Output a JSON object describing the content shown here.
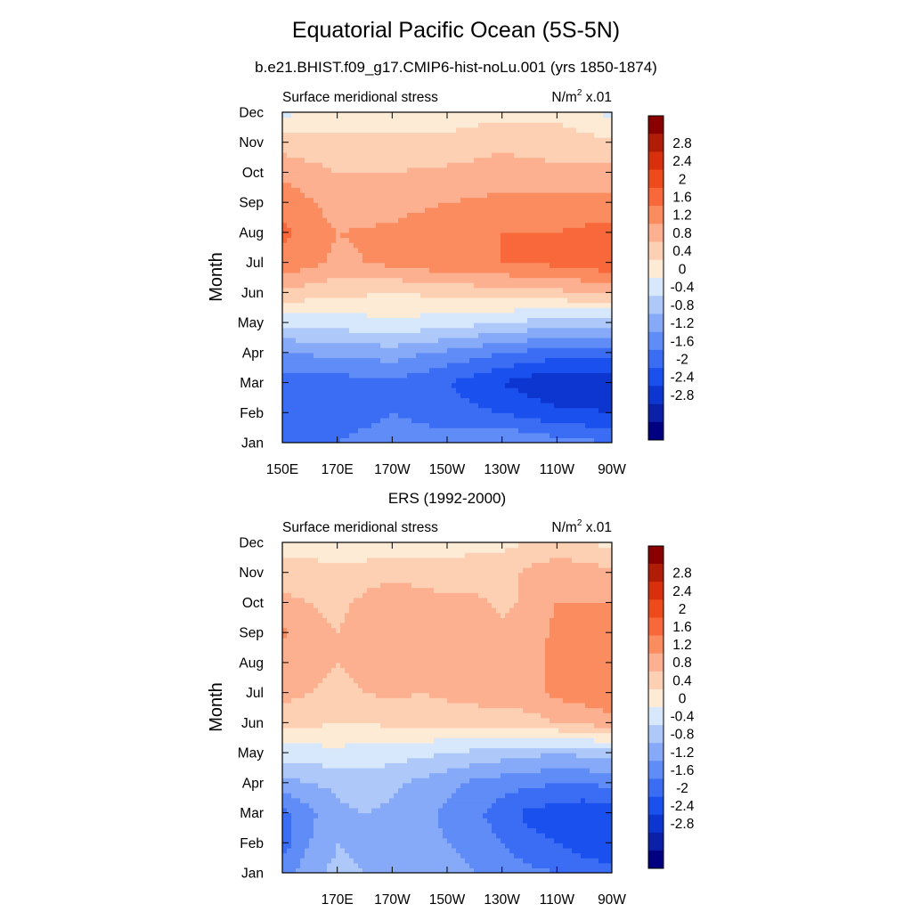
{
  "title": "Equatorial Pacific Ocean (5S-5N)",
  "subtitle": "b.e21.BHIST.f09_g17.CMIP6-hist-noLu.001 (yrs 1850-1874)",
  "colors": [
    "#000080",
    "#0a20a8",
    "#0d36d0",
    "#1a50ee",
    "#3a6cf4",
    "#5f8cf6",
    "#86aaf8",
    "#afc8fa",
    "#d8e8fc",
    "#fdebd6",
    "#fdd0b4",
    "#fcb090",
    "#fb8c60",
    "#f8683a",
    "#ef4a1c",
    "#d8300d",
    "#b01c05",
    "#8a0000"
  ],
  "chart_data": [
    {
      "type": "heatmap",
      "title": "",
      "left_label": "Surface meridional stress",
      "units_label": "N/m",
      "units_superscript": "2",
      "units_scale": "x.01",
      "xlabel": "",
      "ylabel": "Month",
      "x_tick_labels": [
        "150E",
        "170E",
        "170W",
        "150W",
        "130W",
        "110W",
        "90W"
      ],
      "y_tick_labels": [
        "Jan",
        "Feb",
        "Mar",
        "Apr",
        "May",
        "Jun",
        "Jul",
        "Aug",
        "Sep",
        "Oct",
        "Nov",
        "Dec"
      ],
      "colorbar_levels": [
        "2.8",
        "2.4",
        "2",
        "1.6",
        "1.2",
        "0.8",
        "0.4",
        "0",
        "-0.4",
        "-0.8",
        "-1.2",
        "-1.6",
        "-2",
        "-2.4",
        "-2.8"
      ],
      "x_lon": [
        150,
        170,
        190,
        210,
        230,
        250,
        270
      ],
      "y_months": [
        "Jan",
        "Feb",
        "Mar",
        "Apr",
        "May",
        "Jun",
        "Jul",
        "Aug",
        "Sep",
        "Oct",
        "Nov",
        "Dec"
      ],
      "values": [
        [
          -1.6,
          -1.6,
          -1.4,
          -1.4,
          -1.2,
          -1.4,
          -1.6
        ],
        [
          -1.8,
          -1.8,
          -1.6,
          -1.8,
          -2.0,
          -2.3,
          -2.4
        ],
        [
          -1.8,
          -1.8,
          -1.7,
          -2.0,
          -2.4,
          -2.8,
          -2.6
        ],
        [
          -1.2,
          -1.1,
          -1.0,
          -1.3,
          -1.6,
          -1.8,
          -1.8
        ],
        [
          -0.3,
          -0.2,
          -0.1,
          -0.2,
          -0.4,
          -0.6,
          -0.7
        ],
        [
          0.7,
          0.5,
          0.4,
          0.5,
          0.6,
          0.7,
          0.9
        ],
        [
          1.5,
          1.1,
          1.3,
          1.5,
          1.6,
          1.7,
          1.9
        ],
        [
          1.7,
          1.2,
          1.3,
          1.6,
          1.6,
          1.6,
          1.8
        ],
        [
          1.5,
          1.0,
          1.0,
          1.2,
          1.3,
          1.3,
          1.3
        ],
        [
          1.1,
          0.8,
          0.8,
          0.9,
          1.0,
          0.9,
          0.9
        ],
        [
          0.6,
          0.5,
          0.5,
          0.5,
          0.7,
          0.6,
          0.5
        ],
        [
          -0.1,
          0.2,
          0.1,
          0.2,
          0.3,
          0.3,
          -0.1
        ]
      ]
    },
    {
      "type": "heatmap",
      "title": "ERS (1992-2000)",
      "left_label": "Surface meridional stress",
      "units_label": "N/m",
      "units_superscript": "2",
      "units_scale": "x.01",
      "xlabel": "",
      "ylabel": "Month",
      "x_tick_labels": [
        "170E",
        "170W",
        "150W",
        "130W",
        "110W",
        "90W"
      ],
      "y_tick_labels": [
        "Jan",
        "Feb",
        "Mar",
        "Apr",
        "May",
        "Jun",
        "Jul",
        "Aug",
        "Sep",
        "Oct",
        "Nov",
        "Dec"
      ],
      "colorbar_levels": [
        "2.8",
        "2.4",
        "2",
        "1.6",
        "1.2",
        "0.8",
        "0.4",
        "0",
        "-0.4",
        "-0.8",
        "-1.2",
        "-1.6",
        "-2",
        "-2.4",
        "-2.8"
      ],
      "x_lon": [
        150,
        160,
        170,
        180,
        190,
        200,
        210,
        220,
        230,
        240,
        250,
        260,
        270
      ],
      "y_months": [
        "Jan",
        "Feb",
        "Mar",
        "Apr",
        "May",
        "Jun",
        "Jul",
        "Aug",
        "Sep",
        "Oct",
        "Nov",
        "Dec"
      ],
      "values": [
        [
          -1.4,
          -0.9,
          -0.7,
          -0.8,
          -0.9,
          -1.0,
          -1.0,
          -1.2,
          -1.3,
          -1.5,
          -1.6,
          -1.8,
          -1.9
        ],
        [
          -1.8,
          -1.2,
          -0.8,
          -0.9,
          -1.0,
          -1.1,
          -1.2,
          -1.4,
          -1.6,
          -1.9,
          -2.0,
          -2.2,
          -2.2
        ],
        [
          -1.7,
          -1.3,
          -0.9,
          -0.8,
          -0.9,
          -1.0,
          -1.3,
          -1.5,
          -1.8,
          -2.1,
          -2.2,
          -2.3,
          -2.2
        ],
        [
          -1.0,
          -0.8,
          -0.7,
          -0.6,
          -0.7,
          -0.9,
          -1.1,
          -1.3,
          -1.4,
          -1.5,
          -1.6,
          -1.6,
          -1.5
        ],
        [
          -0.2,
          -0.2,
          -0.1,
          -0.2,
          -0.2,
          -0.3,
          -0.4,
          -0.5,
          -0.6,
          -0.7,
          -0.8,
          -0.7,
          -0.6
        ],
        [
          0.6,
          0.5,
          0.4,
          0.4,
          0.5,
          0.5,
          0.5,
          0.5,
          0.6,
          0.6,
          0.8,
          0.9,
          1.0
        ],
        [
          0.9,
          0.8,
          0.7,
          0.8,
          0.9,
          0.8,
          0.9,
          1.0,
          1.0,
          1.1,
          1.3,
          1.4,
          1.6
        ],
        [
          1.0,
          0.9,
          0.8,
          0.9,
          1.0,
          1.0,
          1.1,
          1.1,
          1.0,
          1.1,
          1.3,
          1.4,
          1.5
        ],
        [
          1.3,
          0.9,
          0.8,
          1.0,
          1.1,
          1.1,
          1.0,
          1.0,
          0.9,
          1.0,
          1.3,
          1.4,
          1.4
        ],
        [
          0.9,
          0.8,
          0.7,
          0.9,
          1.1,
          1.0,
          0.9,
          0.9,
          0.7,
          0.9,
          1.2,
          1.2,
          1.2
        ],
        [
          0.6,
          0.6,
          0.5,
          0.6,
          0.7,
          0.6,
          0.6,
          0.6,
          0.6,
          0.9,
          1.1,
          1.0,
          0.9
        ],
        [
          0.2,
          0.2,
          0.1,
          0.1,
          0.1,
          0.2,
          0.2,
          0.3,
          0.3,
          0.4,
          0.5,
          0.4,
          0.3
        ]
      ]
    }
  ]
}
